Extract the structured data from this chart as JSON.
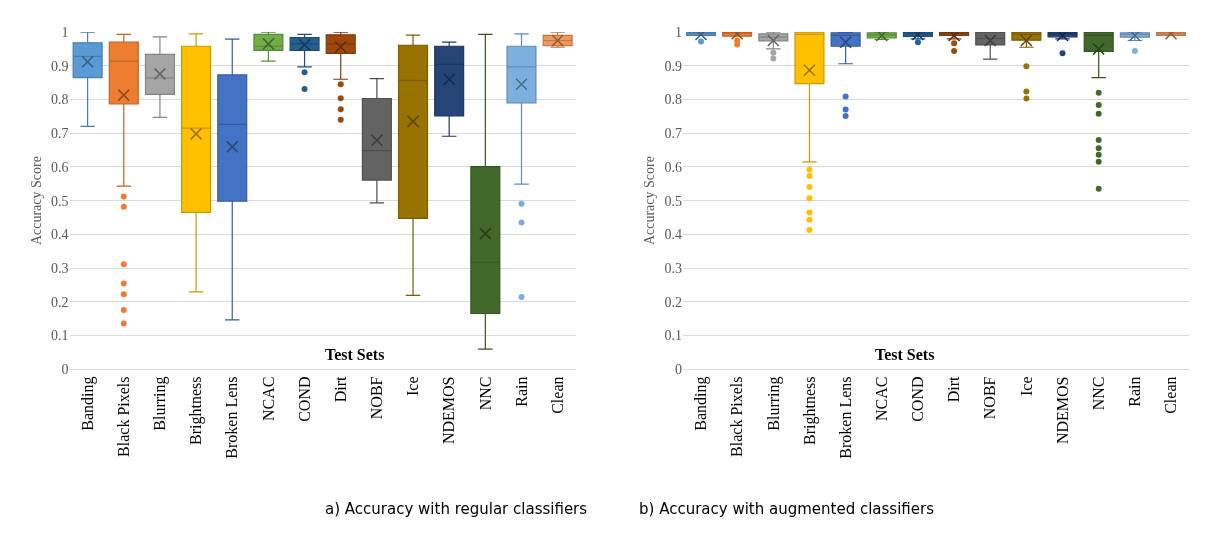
{
  "chart_data": [
    {
      "type": "box",
      "title": "a) Accuracy with regular classifiers",
      "xlabel": "Test Sets",
      "ylabel": "Accuracy Score",
      "categories": [
        "Banding",
        "Black Pixels",
        "Blurring",
        "Brightness",
        "Broken Lens",
        "NCAC",
        "COND",
        "Dirt",
        "NOBF",
        "Ice",
        "NDEMOS",
        "NNC",
        "Rain",
        "Clean"
      ],
      "colors": [
        "#5b9bd5",
        "#ed7d31",
        "#a5a5a5",
        "#ffc000",
        "#4472c4",
        "#70ad47",
        "#255e91",
        "#9e480e",
        "#636363",
        "#997300",
        "#264478",
        "#43682b",
        "#7cafdd",
        "#f1975a"
      ],
      "boxes": [
        {
          "low": 0.72,
          "q1": 0.865,
          "median": 0.928,
          "q3": 0.968,
          "high": 1.0,
          "mean": 0.912
        },
        {
          "low": 0.543,
          "q1": 0.787,
          "median": 0.914,
          "q3": 0.97,
          "high": 0.993,
          "mean": 0.813,
          "outliers": [
            0.512,
            0.482,
            0.311,
            0.254,
            0.222,
            0.175,
            0.135
          ]
        },
        {
          "low": 0.747,
          "q1": 0.815,
          "median": 0.864,
          "q3": 0.934,
          "high": 0.986,
          "mean": 0.876
        },
        {
          "low": 0.229,
          "q1": 0.465,
          "median": 0.715,
          "q3": 0.958,
          "high": 0.995,
          "mean": 0.698
        },
        {
          "low": 0.146,
          "q1": 0.498,
          "median": 0.726,
          "q3": 0.873,
          "high": 0.979,
          "mean": 0.66
        },
        {
          "low": 0.914,
          "q1": 0.946,
          "median": 0.958,
          "q3": 0.993,
          "high": 1.0,
          "mean": 0.965
        },
        {
          "low": 0.897,
          "q1": 0.946,
          "median": 0.965,
          "q3": 0.984,
          "high": 0.993,
          "mean": 0.962,
          "outliers": [
            0.881,
            0.831
          ]
        },
        {
          "low": 0.86,
          "q1": 0.937,
          "median": 0.965,
          "q3": 0.992,
          "high": 1.0,
          "mean": 0.956,
          "outliers": [
            0.845,
            0.804,
            0.771,
            0.74
          ]
        },
        {
          "low": 0.493,
          "q1": 0.561,
          "median": 0.648,
          "q3": 0.803,
          "high": 0.862,
          "mean": 0.679
        },
        {
          "low": 0.219,
          "q1": 0.447,
          "median": 0.857,
          "q3": 0.961,
          "high": 0.991,
          "mean": 0.735
        },
        {
          "low": 0.691,
          "q1": 0.751,
          "median": 0.904,
          "q3": 0.958,
          "high": 0.97,
          "mean": 0.86
        },
        {
          "low": 0.059,
          "q1": 0.165,
          "median": 0.317,
          "q3": 0.601,
          "high": 0.993,
          "mean": 0.402
        },
        {
          "low": 0.549,
          "q1": 0.79,
          "median": 0.897,
          "q3": 0.958,
          "high": 0.995,
          "mean": 0.845,
          "outliers": [
            0.491,
            0.435,
            0.214
          ]
        },
        {
          "low": 0.955,
          "q1": 0.96,
          "median": 0.975,
          "q3": 0.99,
          "high": 1.0,
          "mean": 0.975
        }
      ],
      "ylim": [
        0,
        1
      ],
      "yticks": [
        0,
        0.1,
        0.2,
        0.3,
        0.4,
        0.5,
        0.6,
        0.7,
        0.8,
        0.9,
        1
      ],
      "grid": "y"
    },
    {
      "type": "box",
      "title": "b) Accuracy with augmented classifiers",
      "xlabel": "Test Sets",
      "ylabel": "Accuracy Score",
      "categories": [
        "Banding",
        "Black Pixels",
        "Blurring",
        "Brightness",
        "Broken Lens",
        "NCAC",
        "COND",
        "Dirt",
        "NOBF",
        "Ice",
        "NDEMOS",
        "NNC",
        "Rain",
        "Clean"
      ],
      "colors": [
        "#5b9bd5",
        "#ed7d31",
        "#a5a5a5",
        "#ffc000",
        "#4472c4",
        "#70ad47",
        "#255e91",
        "#9e480e",
        "#636363",
        "#997300",
        "#264478",
        "#43682b",
        "#7cafdd",
        "#f1975a"
      ],
      "boxes": [
        {
          "low": 0.99,
          "q1": 0.99,
          "median": 0.997,
          "q3": 1.0,
          "high": 1.0,
          "mean": 0.993,
          "outliers": [
            0.972
          ]
        },
        {
          "low": 0.988,
          "q1": 0.988,
          "median": 0.997,
          "q3": 1.0,
          "high": 1.0,
          "mean": 0.995,
          "outliers": [
            0.975,
            0.963
          ]
        },
        {
          "low": 0.95,
          "q1": 0.974,
          "median": 0.985,
          "q3": 0.995,
          "high": 1.0,
          "mean": 0.975,
          "outliers": [
            0.939,
            0.922
          ]
        },
        {
          "low": 0.615,
          "q1": 0.847,
          "median": 0.993,
          "q3": 1.0,
          "high": 1.0,
          "mean": 0.887,
          "outliers": [
            0.592,
            0.573,
            0.54,
            0.507,
            0.465,
            0.443,
            0.413
          ]
        },
        {
          "low": 0.906,
          "q1": 0.958,
          "median": 0.99,
          "q3": 0.998,
          "high": 1.0,
          "mean": 0.97,
          "outliers": [
            0.809,
            0.77,
            0.751
          ]
        },
        {
          "low": 0.978,
          "q1": 0.983,
          "median": 0.992,
          "q3": 0.998,
          "high": 1.0,
          "mean": 0.99
        },
        {
          "low": 0.98,
          "q1": 0.987,
          "median": 0.995,
          "q3": 1.0,
          "high": 1.0,
          "mean": 0.993,
          "outliers": [
            0.97
          ]
        },
        {
          "low": 0.98,
          "q1": 0.99,
          "median": 0.996,
          "q3": 1.0,
          "high": 1.0,
          "mean": 0.99,
          "outliers": [
            0.967,
            0.944
          ]
        },
        {
          "low": 0.92,
          "q1": 0.962,
          "median": 0.981,
          "q3": 1.0,
          "high": 1.0,
          "mean": 0.975
        },
        {
          "low": 0.955,
          "q1": 0.976,
          "median": 0.993,
          "q3": 1.0,
          "high": 1.0,
          "mean": 0.975,
          "outliers": [
            0.899,
            0.824,
            0.803
          ]
        },
        {
          "low": 0.98,
          "q1": 0.986,
          "median": 0.995,
          "q3": 1.0,
          "high": 1.0,
          "mean": 0.99,
          "outliers": [
            0.937
          ]
        },
        {
          "low": 0.865,
          "q1": 0.943,
          "median": 0.991,
          "q3": 1.0,
          "high": 1.0,
          "mean": 0.95,
          "outliers": [
            0.82,
            0.784,
            0.758,
            0.68,
            0.655,
            0.636,
            0.615,
            0.535
          ]
        },
        {
          "low": 0.975,
          "q1": 0.985,
          "median": 0.993,
          "q3": 0.998,
          "high": 1.0,
          "mean": 0.99,
          "outliers": [
            0.944
          ]
        },
        {
          "low": 0.99,
          "q1": 0.99,
          "median": 0.995,
          "q3": 0.999,
          "high": 1.0,
          "mean": 0.995
        }
      ],
      "ylim": [
        0,
        1
      ],
      "yticks": [
        0,
        0.1,
        0.2,
        0.3,
        0.4,
        0.5,
        0.6,
        0.7,
        0.8,
        0.9,
        1
      ],
      "grid": "y"
    }
  ]
}
